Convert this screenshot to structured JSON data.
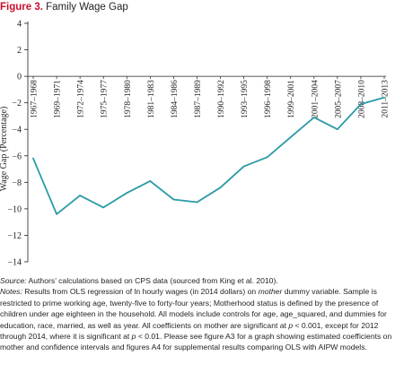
{
  "figure": {
    "label": "Figure 3.",
    "title": "Family Wage Gap"
  },
  "colors": {
    "label": "#c8102e",
    "line": "#2a9aa5",
    "axis": "#231f20"
  },
  "chart_data": {
    "type": "line",
    "title": "Family Wage Gap",
    "xlabel": "",
    "ylabel": "Wage Gap (Percentage)",
    "ylim": [
      -14,
      4
    ],
    "yticks": [
      4,
      2,
      0,
      -2,
      -4,
      -6,
      -8,
      -10,
      -12,
      -14
    ],
    "grid": false,
    "categories": [
      "1967–1968",
      "1969–1971",
      "1972–1974",
      "1975–1977",
      "1978–1980",
      "1981–1983",
      "1984–1986",
      "1987–1989",
      "1990–1992",
      "1993–1995",
      "1996–1998",
      "1999–2001",
      "2001–2004",
      "2005–2007",
      "2008–2010",
      "2011–2013"
    ],
    "series": [
      {
        "values": [
          -6.2,
          -10.4,
          -9.0,
          -9.9,
          -8.8,
          -7.9,
          -9.3,
          -9.5,
          -8.4,
          -6.8,
          -6.1,
          -4.6,
          -3.1,
          -4.0,
          -2.1,
          -1.6
        ]
      }
    ]
  },
  "notes": {
    "source_label": "Source:",
    "source_text": " Authors’ calculations based on CPS data (sourced from King et al. 2010).",
    "notes_label": "Notes:",
    "n1": " Results from OLS regression of ln hourly wages (in 2014 dollars) on ",
    "n1_em": "mother",
    "n2": " dummy variable. Sample is restricted to prime working age, twenty-five to forty-four years; Motherhood status is defined by the presence of children under age eighteen in the household. All models include controls for age, age_squared, and dummies for education, race, married, as well as year. All coefficients on mother are significant at ",
    "p1": "p",
    "n3": " < 0.001, except for 2012 through 2014, where it is significant at ",
    "p2": "p",
    "n4": " < 0.01. Please see figure A3 for a graph showing estimated coefficients on mother and confidence intervals and figures A4 for supplemental results comparing OLS with AIPW models."
  }
}
